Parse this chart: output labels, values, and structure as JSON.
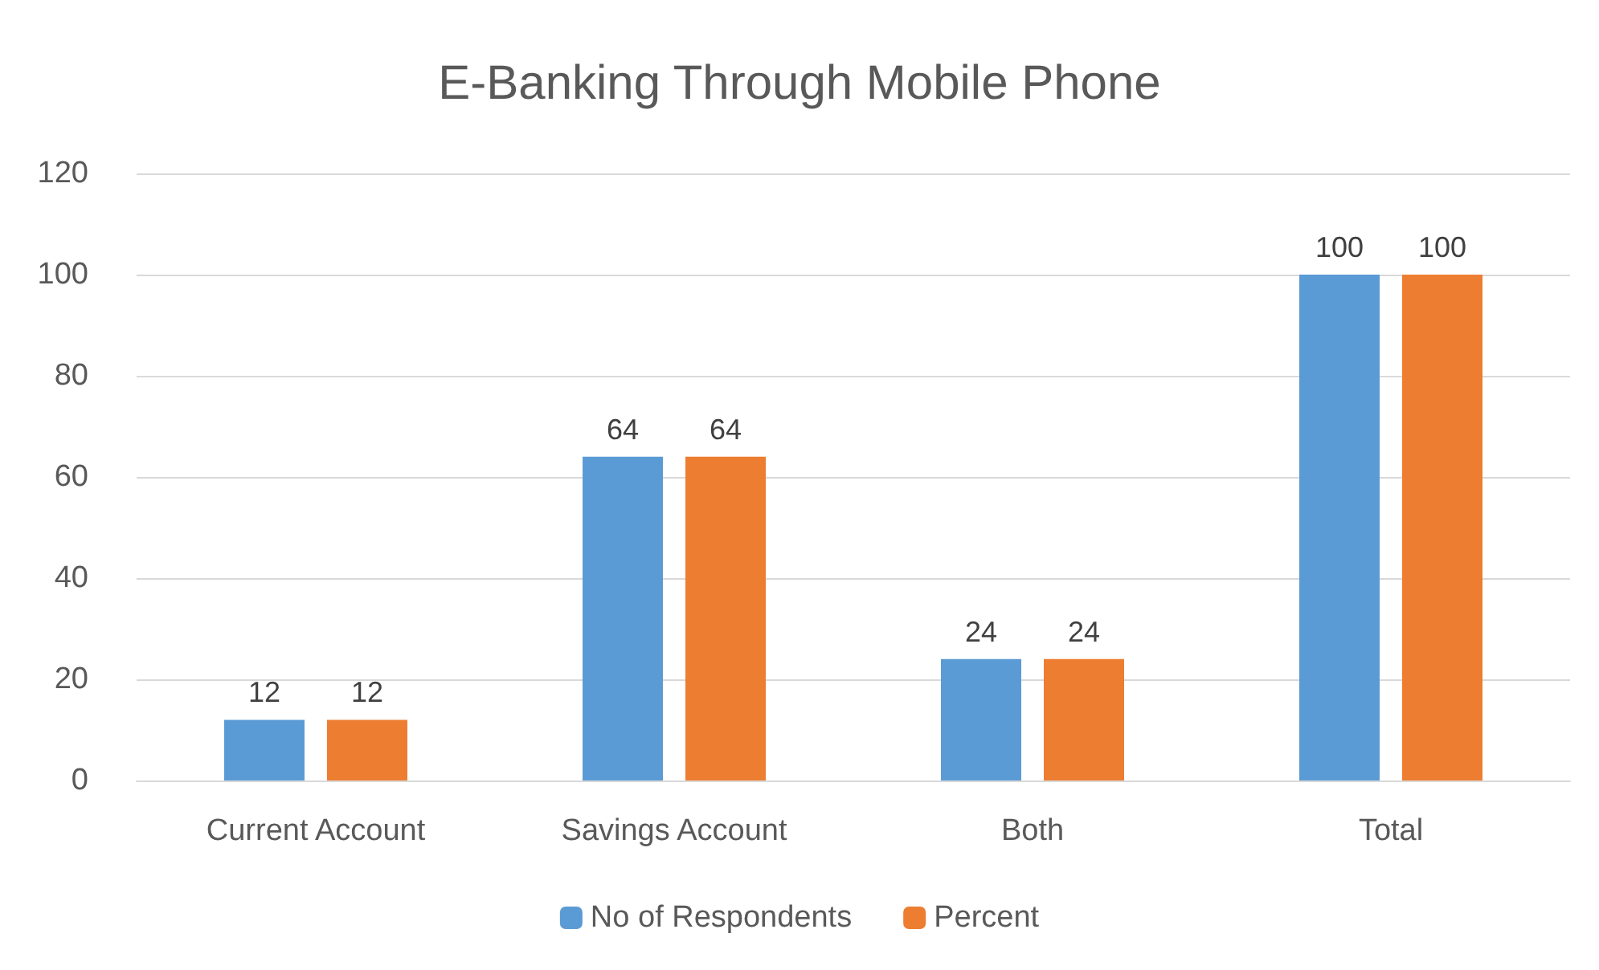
{
  "chart_data": {
    "type": "bar",
    "title": "E-Banking Through Mobile Phone",
    "categories": [
      "Current Account",
      "Savings Account",
      "Both",
      "Total"
    ],
    "series": [
      {
        "name": "No of Respondents",
        "color": "#5b9bd5",
        "values": [
          12,
          64,
          24,
          100
        ]
      },
      {
        "name": "Percent",
        "color": "#ed7d31",
        "values": [
          12,
          64,
          24,
          100
        ]
      }
    ],
    "ylim": [
      0,
      120
    ],
    "yticks": [
      0,
      20,
      40,
      60,
      80,
      100,
      120
    ],
    "grid": "y",
    "legend": "bottom",
    "data_labels": true
  }
}
